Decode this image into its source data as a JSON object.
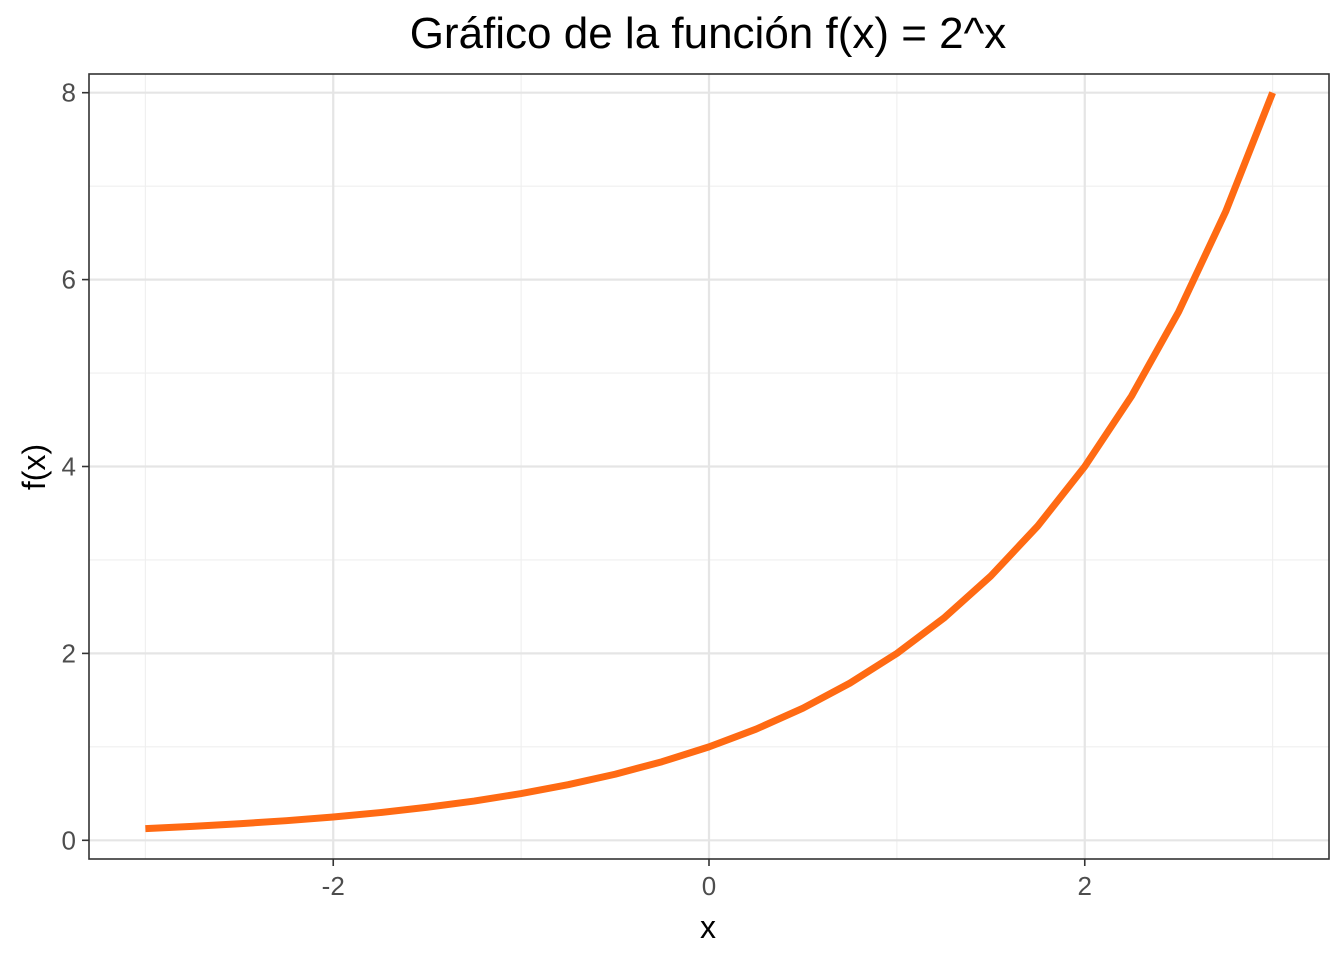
{
  "chart_data": {
    "type": "line",
    "title": "Gráfico de la función f(x) = 2^x",
    "xlabel": "x",
    "ylabel": "f(x)",
    "xlim": [
      -3.3,
      3.3
    ],
    "ylim": [
      -0.2,
      8.2
    ],
    "x_ticks": [
      -2,
      0,
      2
    ],
    "y_ticks": [
      0,
      2,
      4,
      6,
      8
    ],
    "x_minor": [
      -3,
      -1,
      1,
      3
    ],
    "y_minor": [
      1,
      3,
      5,
      7
    ],
    "grid": true,
    "legend": "none",
    "series": [
      {
        "color": "#ff6a13",
        "x": [
          -3,
          -2.75,
          -2.5,
          -2.25,
          -2,
          -1.75,
          -1.5,
          -1.25,
          -1,
          -0.75,
          -0.5,
          -0.25,
          0,
          0.25,
          0.5,
          0.75,
          1,
          1.25,
          1.5,
          1.75,
          2,
          2.25,
          2.5,
          2.75,
          3
        ],
        "y": [
          0.125,
          0.149,
          0.177,
          0.21,
          0.25,
          0.297,
          0.354,
          0.42,
          0.5,
          0.595,
          0.707,
          0.841,
          1,
          1.189,
          1.414,
          1.682,
          2,
          2.378,
          2.828,
          3.364,
          4,
          4.757,
          5.657,
          6.727,
          8
        ]
      }
    ]
  }
}
